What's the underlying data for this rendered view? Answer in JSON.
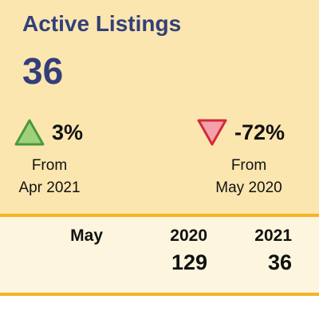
{
  "title": "Active Listings",
  "count": "36",
  "changes": [
    {
      "direction": "up",
      "color": "#4a9a3a",
      "fill": "#9fd17c",
      "percent": "3%",
      "from_label": "From",
      "period": "Apr 2021"
    },
    {
      "direction": "down",
      "color": "#d12b3a",
      "fill": "#f3a0aa",
      "percent": "-72%",
      "from_label": "From",
      "period": "May 2020"
    }
  ],
  "table": {
    "headers": [
      "May",
      "2020",
      "2021"
    ],
    "values": [
      "",
      "129",
      "36"
    ]
  },
  "colors": {
    "title": "#333f7a",
    "panel": "#fbe6b0",
    "table": "#fdf5dd",
    "rule": "#f5b324"
  }
}
